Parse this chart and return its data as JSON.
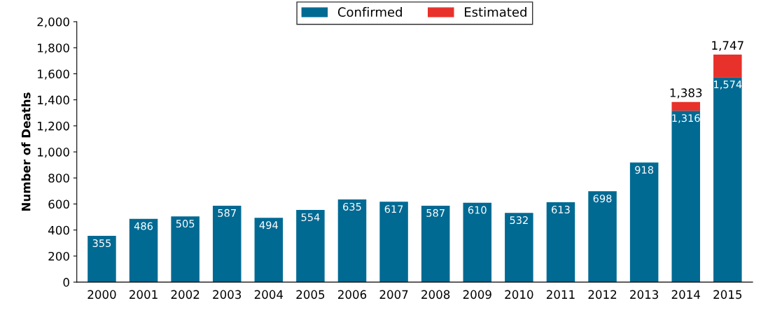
{
  "chart_data": {
    "type": "bar",
    "stacked": true,
    "ylabel": "Number of Deaths",
    "categories": [
      "2000",
      "2001",
      "2002",
      "2003",
      "2004",
      "2005",
      "2006",
      "2007",
      "2008",
      "2009",
      "2010",
      "2011",
      "2012",
      "2013",
      "2014",
      "2015"
    ],
    "series": [
      {
        "name": "Confirmed",
        "color": "#006a93",
        "values": [
          355,
          486,
          505,
          587,
          494,
          554,
          635,
          617,
          587,
          610,
          532,
          613,
          698,
          918,
          1316,
          1574
        ],
        "value_labels": [
          "355",
          "486",
          "505",
          "587",
          "494",
          "554",
          "635",
          "617",
          "587",
          "610",
          "532",
          "613",
          "698",
          "918",
          "1,316",
          "1,574"
        ]
      },
      {
        "name": "Estimated",
        "color": "#e8312a",
        "values": [
          null,
          null,
          null,
          null,
          null,
          null,
          null,
          null,
          null,
          null,
          null,
          null,
          null,
          null,
          67,
          173
        ]
      }
    ],
    "totals": [
      null,
      null,
      null,
      null,
      null,
      null,
      null,
      null,
      null,
      null,
      null,
      null,
      null,
      null,
      "1,383",
      "1,747"
    ],
    "ylim": [
      0,
      2000
    ],
    "yticks": [
      0,
      200,
      400,
      600,
      800,
      {
        "value": 1000,
        "label": "1,000"
      },
      {
        "value": 1200,
        "label": "1,200"
      },
      {
        "value": 1400,
        "label": "1,400"
      },
      {
        "value": 1600,
        "label": "1,600"
      },
      {
        "value": 1800,
        "label": "1,800"
      },
      {
        "value": 2000,
        "label": "2,000"
      }
    ],
    "grid": false,
    "legend": "top"
  }
}
